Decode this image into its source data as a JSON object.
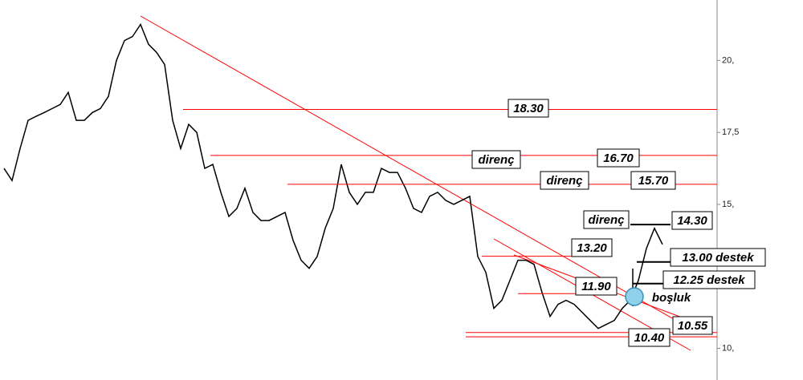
{
  "chart_data": {
    "type": "line",
    "color": "#000000",
    "values": [
      16.25,
      15.83,
      16.94,
      17.92,
      18.06,
      18.19,
      18.33,
      18.47,
      18.89,
      17.92,
      17.92,
      18.19,
      18.33,
      18.75,
      20,
      20.69,
      20.83,
      21.25,
      20.56,
      20.28,
      19.86,
      17.92,
      16.94,
      17.78,
      17.5,
      16.25,
      16.39,
      15.42,
      14.58,
      14.86,
      15.56,
      14.72,
      14.44,
      14.44,
      14.58,
      14.72,
      13.75,
      13.06,
      12.78,
      13.19,
      14.17,
      14.86,
      16.39,
      15.42,
      15,
      15.42,
      15.42,
      16.25,
      16.11,
      16.11,
      15.56,
      14.86,
      14.72,
      15.28,
      15.42,
      15.14,
      15,
      15.14,
      15.28,
      13.19,
      12.64,
      11.39,
      11.67,
      12.36,
      13.06,
      13.06,
      12.92,
      11.94,
      11.11,
      11.53,
      11.67,
      11.53,
      11.25,
      10.97,
      10.69,
      10.83,
      10.97,
      11.39,
      11.67,
      12.36,
      13.47,
      14.17,
      13.61
    ],
    "ylim": [
      8.9,
      22.1
    ],
    "yticks": [
      {
        "value": 10,
        "label": "10,"
      },
      {
        "value": 15,
        "label": "15,"
      },
      {
        "value": 17.5,
        "label": "17,5"
      },
      {
        "value": 20,
        "label": "20,"
      }
    ],
    "level_color": "#ff0000",
    "annotations": [
      {
        "text": "18.30",
        "value": 18.3
      },
      {
        "text": "direnç"
      },
      {
        "text": "16.70",
        "value": 16.7
      },
      {
        "text": "direnç"
      },
      {
        "text": "15.70",
        "value": 15.7
      },
      {
        "text": "direnç"
      },
      {
        "text": "14.30",
        "value": 14.3
      },
      {
        "text": "13.20",
        "value": 13.2
      },
      {
        "text": "13.00  destek",
        "value": 13.0
      },
      {
        "text": "12.25  destek",
        "value": 12.25
      },
      {
        "text": "11.90",
        "value": 11.9
      },
      {
        "text": "boşluk"
      },
      {
        "text": "10.55",
        "value": 10.55
      },
      {
        "text": "10.40",
        "value": 10.4
      }
    ]
  }
}
